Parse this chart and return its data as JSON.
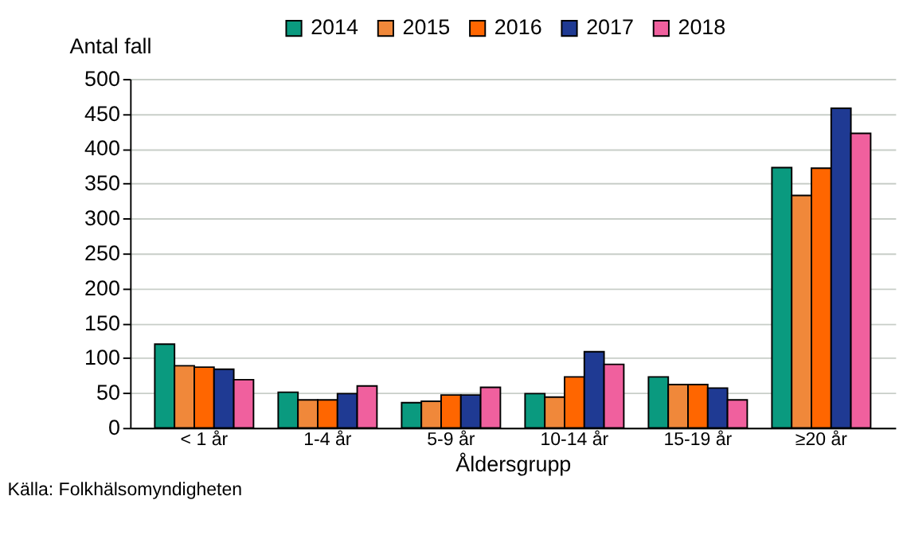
{
  "chart_data": {
    "type": "bar",
    "categories": [
      "< 1 år",
      "1-4 år",
      "5-9 år",
      "10-14 år",
      "15-19 år",
      "≥20 år"
    ],
    "xlabel": "Åldersgrupp",
    "ylabel": "Antal fall",
    "ylim": [
      0,
      500
    ],
    "yticks": [
      0,
      50,
      100,
      150,
      200,
      250,
      300,
      350,
      400,
      450,
      500
    ],
    "grid": "y",
    "legend": "top",
    "annotations": [
      "Källa: Folkhälsomyndigheten"
    ],
    "series": [
      {
        "name": "2014",
        "color": "#0a9a7f",
        "values": [
          120,
          51,
          36,
          49,
          73,
          373
        ]
      },
      {
        "name": "2015",
        "color": "#f0883a",
        "values": [
          89,
          40,
          38,
          44,
          62,
          333
        ]
      },
      {
        "name": "2016",
        "color": "#ff6600",
        "values": [
          87,
          40,
          47,
          73,
          62,
          372
        ]
      },
      {
        "name": "2017",
        "color": "#1f3a93",
        "values": [
          84,
          49,
          47,
          109,
          57,
          458
        ]
      },
      {
        "name": "2018",
        "color": "#f0609e",
        "values": [
          69,
          60,
          58,
          91,
          40,
          422
        ]
      }
    ]
  }
}
